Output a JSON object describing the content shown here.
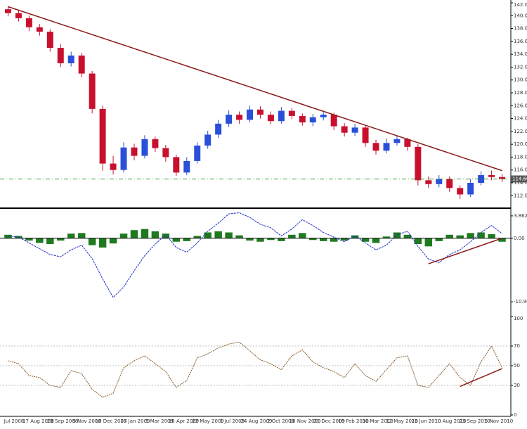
{
  "chart_data": [
    {
      "type": "candlestick",
      "open": [
        141.0,
        140.4,
        139.6,
        138.2,
        137.5,
        135.0,
        132.6,
        133.8,
        131.0,
        125.5,
        117.0,
        116.0,
        119.5,
        118.2,
        120.8,
        119.4,
        118.0,
        115.6,
        117.4,
        119.8,
        121.5,
        123.2,
        124.6,
        123.8,
        125.4,
        124.6,
        123.6,
        125.2,
        124.4,
        123.4,
        124.2,
        124.6,
        122.8,
        121.8,
        122.6,
        120.2,
        119.0,
        120.2,
        120.8,
        119.6,
        114.4,
        113.8,
        114.6,
        113.2,
        112.2,
        114.0,
        115.2,
        114.9
      ],
      "high": [
        141.4,
        140.8,
        140.0,
        138.7,
        137.9,
        135.6,
        134.4,
        134.2,
        131.4,
        126.0,
        118.2,
        120.3,
        120.1,
        121.4,
        121.2,
        119.9,
        118.4,
        118.0,
        120.3,
        122.1,
        123.8,
        125.3,
        125.1,
        126.0,
        125.9,
        125.1,
        125.8,
        125.6,
        124.8,
        124.7,
        125.0,
        124.9,
        123.3,
        123.2,
        122.9,
        120.7,
        120.9,
        121.3,
        121.0,
        120.0,
        115.0,
        115.2,
        115.0,
        113.6,
        114.6,
        115.8,
        115.9,
        115.4
      ],
      "low": [
        139.9,
        139.1,
        137.6,
        136.9,
        134.4,
        132.0,
        132.1,
        130.4,
        124.8,
        115.9,
        115.3,
        115.6,
        117.5,
        117.8,
        118.8,
        117.3,
        115.1,
        115.2,
        117.0,
        119.3,
        121.0,
        122.7,
        123.2,
        123.4,
        124.0,
        123.1,
        123.2,
        123.9,
        122.9,
        122.8,
        123.7,
        122.2,
        121.2,
        121.3,
        119.6,
        118.4,
        118.6,
        119.8,
        119.0,
        113.6,
        113.2,
        113.3,
        112.6,
        111.5,
        111.8,
        113.6,
        114.4,
        114.1
      ],
      "close": [
        140.4,
        139.6,
        138.2,
        137.5,
        135.0,
        132.6,
        133.8,
        131.0,
        125.5,
        117.0,
        116.0,
        119.5,
        118.2,
        120.8,
        119.4,
        118.0,
        115.6,
        117.4,
        119.8,
        121.5,
        123.2,
        124.6,
        123.8,
        125.4,
        124.6,
        123.6,
        125.2,
        124.4,
        123.4,
        124.2,
        124.6,
        122.8,
        121.8,
        122.6,
        120.2,
        119.0,
        120.2,
        120.8,
        119.6,
        114.4,
        113.8,
        114.6,
        113.2,
        112.2,
        114.0,
        115.2,
        114.9,
        114.6
      ],
      "up_color": "#2a4fd8",
      "down_color": "#c8102e",
      "trendline": {
        "x": [
          0,
          47
        ],
        "values": [
          141.4,
          115.9
        ],
        "color": "#8b1a1a"
      },
      "current_price": {
        "value": 114.6,
        "label": "114.60"
      },
      "current_price_color": "#2e9a2e",
      "ylim": [
        110.5,
        142
      ],
      "yticks": [
        {
          "value": 112,
          "label": "112.00"
        },
        {
          "value": 114,
          "label": "114.00"
        },
        {
          "value": 116,
          "label": "116.00"
        },
        {
          "value": 118,
          "label": "118.00"
        },
        {
          "value": 120,
          "label": "120.00"
        },
        {
          "value": 122,
          "label": "122.00"
        },
        {
          "value": 124,
          "label": "124.00"
        },
        {
          "value": 126,
          "label": "126.00"
        },
        {
          "value": 128,
          "label": "128.00"
        },
        {
          "value": 130,
          "label": "130.00"
        },
        {
          "value": 132,
          "label": "132.00"
        },
        {
          "value": 134,
          "label": "134.00"
        },
        {
          "value": 136,
          "label": "136.00"
        },
        {
          "value": 138,
          "label": "138.00"
        },
        {
          "value": 140,
          "label": "140.00"
        },
        {
          "value": 142,
          "label": "142.00"
        }
      ],
      "date_labels": [
        "Jul 2008",
        "17 Aug 2008",
        "23 Sep 2008",
        "5 Nov 2008",
        "10 Dec 2008",
        "27 Jan 2009",
        "5 Mar 2009",
        "10 Apr 2009",
        "22 May 2009",
        "1 Jul 2009",
        "24 Aug 2009",
        "2 Oct 2009",
        "16 Nov 2009",
        "21 Dec 2009",
        "10 Feb 2010",
        "30 Mar 2010",
        "12 May 2010",
        "23 Jun 2010",
        "10 Aug 2010",
        "23 Sep 2010",
        "5 Nov 2010"
      ]
    },
    {
      "type": "macd",
      "histogram": {
        "color": "#1e7a1e",
        "values": [
          0.6,
          0.4,
          -0.4,
          -0.8,
          -1.0,
          -0.4,
          0.8,
          0.9,
          -1.2,
          -1.6,
          -0.9,
          0.8,
          1.4,
          1.6,
          1.2,
          0.8,
          -0.6,
          -0.5,
          0.4,
          1.0,
          1.2,
          1.0,
          0.5,
          -0.4,
          -0.6,
          -0.3,
          -0.5,
          0.6,
          0.9,
          -0.3,
          -0.5,
          -0.6,
          -0.4,
          0.5,
          -0.6,
          -0.8,
          0.3,
          1.0,
          0.6,
          -1.0,
          -1.4,
          -0.5,
          0.6,
          0.5,
          0.9,
          1.0,
          0.7,
          -0.6
        ]
      },
      "signal": {
        "color": "#2233cc",
        "values": [
          0.4,
          0.2,
          -0.8,
          -1.8,
          -2.8,
          -3.2,
          -2.0,
          -1.2,
          -3.5,
          -7.0,
          -10.2,
          -8.4,
          -5.6,
          -3.0,
          -1.0,
          0.6,
          -1.6,
          -2.4,
          -0.8,
          1.2,
          2.6,
          4.2,
          4.4,
          3.6,
          2.4,
          1.8,
          0.4,
          1.6,
          3.2,
          2.2,
          1.0,
          0.2,
          -0.6,
          0.4,
          -0.8,
          -2.0,
          -1.2,
          0.6,
          1.2,
          -1.4,
          -3.6,
          -4.2,
          -2.8,
          -2.0,
          -0.6,
          1.0,
          2.2,
          0.8
        ]
      },
      "trendline": {
        "x": [
          40,
          47
        ],
        "values": [
          -4.4,
          0.0
        ],
        "color": "#8b1a1a"
      },
      "ylim": [
        -13,
        4.7
      ],
      "yticks": [
        {
          "value": 3.862,
          "label": "3.862"
        },
        {
          "value": 0,
          "label": "0.00"
        },
        -10.96
      ]
    },
    {
      "type": "line",
      "color": "#8a5a2b",
      "values": [
        55,
        52,
        40,
        38,
        30,
        28,
        45,
        42,
        26,
        18,
        22,
        48,
        55,
        60,
        52,
        44,
        28,
        35,
        58,
        62,
        68,
        72,
        74,
        65,
        56,
        52,
        46,
        60,
        66,
        54,
        48,
        44,
        38,
        52,
        40,
        34,
        46,
        58,
        60,
        30,
        28,
        40,
        52,
        38,
        30,
        54,
        70,
        48
      ],
      "trendline": {
        "x": [
          43,
          47
        ],
        "values": [
          29,
          47
        ],
        "color": "#8b1a1a"
      },
      "ylim": [
        0,
        100
      ],
      "yticks": [
        0,
        30,
        50,
        70,
        100
      ],
      "grid": true
    }
  ]
}
